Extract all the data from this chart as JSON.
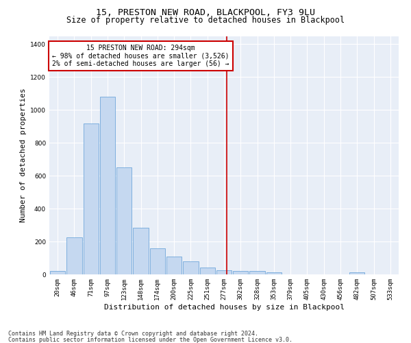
{
  "title": "15, PRESTON NEW ROAD, BLACKPOOL, FY3 9LU",
  "subtitle": "Size of property relative to detached houses in Blackpool",
  "xlabel": "Distribution of detached houses by size in Blackpool",
  "ylabel": "Number of detached properties",
  "footnote1": "Contains HM Land Registry data © Crown copyright and database right 2024.",
  "footnote2": "Contains public sector information licensed under the Open Government Licence v3.0.",
  "bin_labels": [
    "20sqm",
    "46sqm",
    "71sqm",
    "97sqm",
    "123sqm",
    "148sqm",
    "174sqm",
    "200sqm",
    "225sqm",
    "251sqm",
    "277sqm",
    "302sqm",
    "328sqm",
    "353sqm",
    "379sqm",
    "405sqm",
    "430sqm",
    "456sqm",
    "482sqm",
    "507sqm",
    "533sqm"
  ],
  "bar_values": [
    20,
    225,
    920,
    1080,
    650,
    285,
    157,
    107,
    78,
    43,
    27,
    22,
    22,
    13,
    0,
    0,
    0,
    0,
    12,
    0,
    0
  ],
  "bar_color": "#C5D8F0",
  "bar_edge_color": "#5B9BD5",
  "vline_color": "#CC0000",
  "annotation_text": "15 PRESTON NEW ROAD: 294sqm\n← 98% of detached houses are smaller (3,526)\n2% of semi-detached houses are larger (56) →",
  "annotation_box_color": "#CC0000",
  "ylim": [
    0,
    1450
  ],
  "yticks": [
    0,
    200,
    400,
    600,
    800,
    1000,
    1200,
    1400
  ],
  "bg_color": "#E8EEF7",
  "grid_color": "white",
  "title_fontsize": 9.5,
  "subtitle_fontsize": 8.5,
  "axis_label_fontsize": 8,
  "tick_fontsize": 6.5,
  "annot_fontsize": 7,
  "footnote_fontsize": 6
}
